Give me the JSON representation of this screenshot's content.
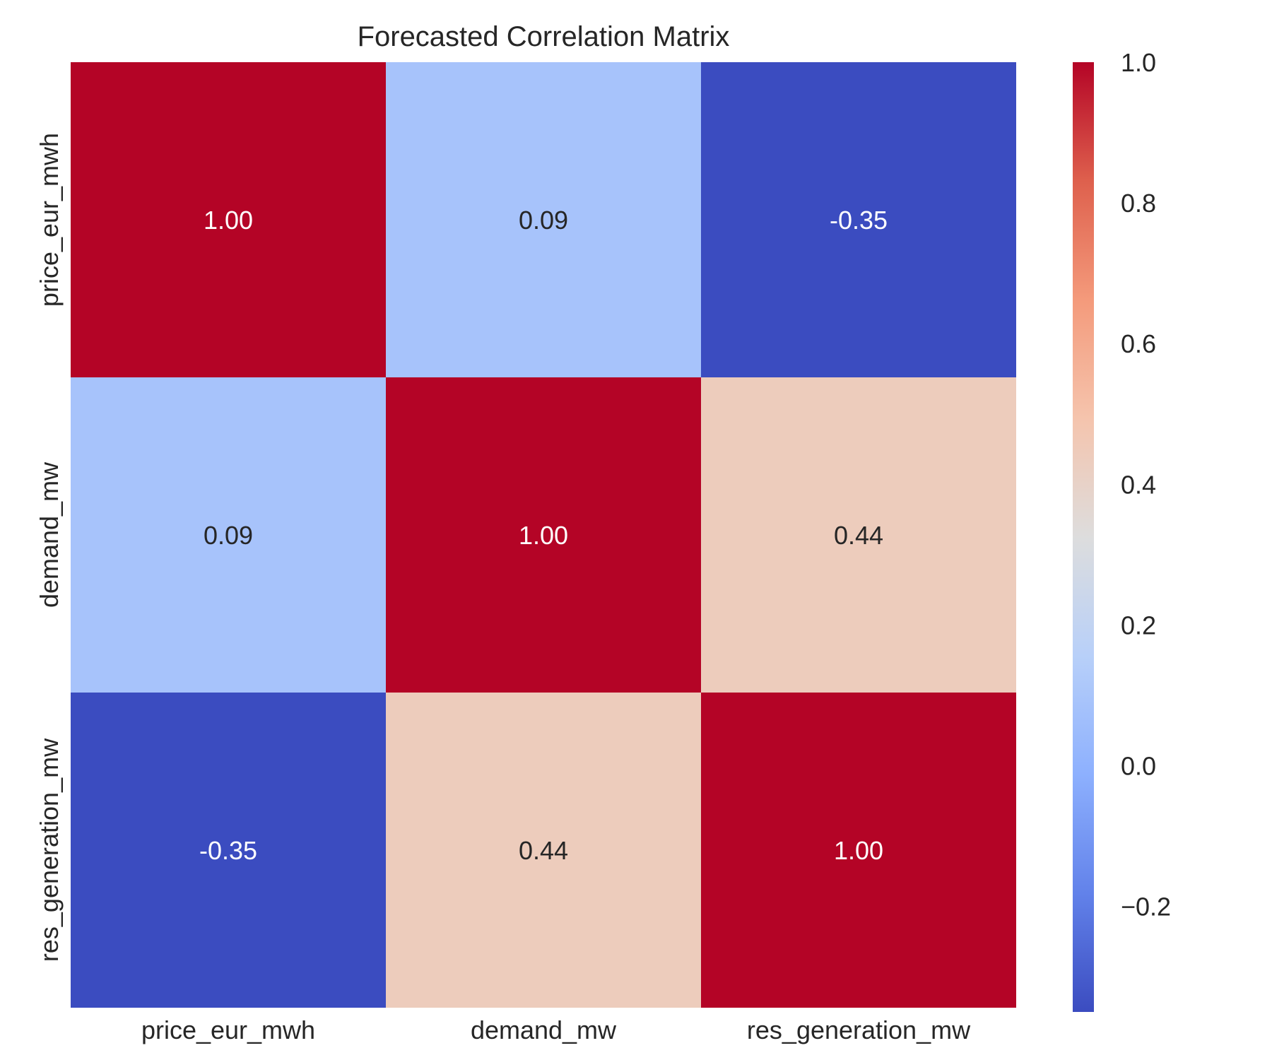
{
  "chart_data": {
    "type": "heatmap",
    "title": "Forecasted Correlation Matrix",
    "x_labels": [
      "price_eur_mwh",
      "demand_mw",
      "res_generation_mw"
    ],
    "y_labels": [
      "price_eur_mwh",
      "demand_mw",
      "res_generation_mw"
    ],
    "values": [
      [
        1.0,
        0.09,
        -0.35
      ],
      [
        0.09,
        1.0,
        0.44
      ],
      [
        -0.35,
        0.44,
        1.0
      ]
    ],
    "cell_labels": [
      [
        "1.00",
        "0.09",
        "-0.35"
      ],
      [
        "0.09",
        "1.00",
        "0.44"
      ],
      [
        "-0.35",
        "0.44",
        "1.00"
      ]
    ],
    "colormap": "coolwarm",
    "vmin": -0.35,
    "vmax": 1.0,
    "colorbar": {
      "ticks": [
        -0.2,
        0.0,
        0.2,
        0.4,
        0.6,
        0.8,
        1.0
      ],
      "tick_labels": [
        "−0.2",
        "0.0",
        "0.2",
        "0.4",
        "0.6",
        "0.8",
        "1.0"
      ]
    }
  }
}
